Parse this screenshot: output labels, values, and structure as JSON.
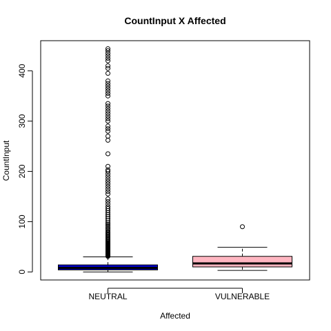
{
  "chart_data": {
    "type": "boxplot",
    "title": "CountInput X Affected",
    "xlabel": "Affected",
    "ylabel": "CountInput",
    "ylim": [
      -16,
      460
    ],
    "yticks": [
      0,
      100,
      200,
      300,
      400
    ],
    "grid": false,
    "legend": "none",
    "categories": [
      "NEUTRAL",
      "VULNERABLE"
    ],
    "boxes": [
      {
        "category": "NEUTRAL",
        "color": "#0000cd",
        "whisker_low": 0,
        "q1": 4,
        "median": 8,
        "q3": 14,
        "whisker_high": 30,
        "outliers": [
          31,
          32,
          33,
          34,
          35,
          36,
          37,
          38,
          39,
          40,
          41,
          42,
          43,
          44,
          45,
          46,
          47,
          48,
          49,
          50,
          51,
          52,
          53,
          54,
          55,
          56,
          57,
          58,
          60,
          62,
          64,
          66,
          68,
          70,
          72,
          74,
          76,
          78,
          80,
          83,
          86,
          89,
          92,
          95,
          98,
          102,
          106,
          110,
          114,
          118,
          122,
          126,
          130,
          135,
          140,
          145,
          155,
          160,
          165,
          170,
          175,
          180,
          185,
          190,
          195,
          200,
          203,
          210,
          235,
          262,
          270,
          280,
          285,
          290,
          300,
          305,
          310,
          315,
          320,
          325,
          330,
          335,
          350,
          355,
          360,
          365,
          370,
          375,
          380,
          395,
          405,
          410,
          420,
          425,
          430,
          435,
          440,
          444
        ]
      },
      {
        "category": "VULNERABLE",
        "color": "#ffb6c1",
        "whisker_low": 3,
        "q1": 10,
        "median": 17,
        "q3": 31,
        "whisker_high": 49,
        "outliers": [
          90
        ]
      }
    ]
  }
}
